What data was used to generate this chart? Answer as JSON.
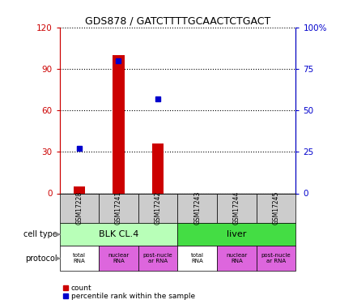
{
  "title": "GDS878 / GATCTTTTGCAACTCTGACT",
  "samples": [
    "GSM17228",
    "GSM17241",
    "GSM17242",
    "GSM17243",
    "GSM17244",
    "GSM17245"
  ],
  "bar_values": [
    5,
    100,
    36,
    0,
    0,
    0
  ],
  "scatter_values": [
    27,
    80,
    57,
    null,
    null,
    null
  ],
  "left_ylim": [
    0,
    120
  ],
  "right_ylim": [
    0,
    100
  ],
  "left_yticks": [
    0,
    30,
    60,
    90,
    120
  ],
  "right_yticks": [
    0,
    25,
    50,
    75,
    100
  ],
  "left_yticklabels": [
    "0",
    "30",
    "60",
    "90",
    "120"
  ],
  "right_yticklabels": [
    "0",
    "25",
    "50",
    "75",
    "100%"
  ],
  "bar_color": "#cc0000",
  "scatter_color": "#0000cc",
  "left_axis_color": "#cc0000",
  "right_axis_color": "#0000cc",
  "cell_groups": [
    {
      "label": "BLK CL.4",
      "start": 0,
      "end": 3,
      "color": "#b8ffb8"
    },
    {
      "label": "liver",
      "start": 3,
      "end": 6,
      "color": "#44dd44"
    }
  ],
  "protocol_groups": [
    {
      "label": "total\nRNA",
      "color": "#ffffff",
      "col": 0
    },
    {
      "label": "nuclear\nRNA",
      "color": "#dd66dd",
      "col": 1
    },
    {
      "label": "post-nucle\nar RNA",
      "color": "#dd66dd",
      "col": 2
    },
    {
      "label": "total\nRNA",
      "color": "#ffffff",
      "col": 3
    },
    {
      "label": "nuclear\nRNA",
      "color": "#dd66dd",
      "col": 4
    },
    {
      "label": "post-nucle\nar RNA",
      "color": "#dd66dd",
      "col": 5
    }
  ],
  "legend_count_color": "#cc0000",
  "legend_scatter_color": "#0000cc",
  "legend_count_label": "count",
  "legend_scatter_label": "percentile rank within the sample",
  "bg_color": "#ffffff",
  "sample_bg_color": "#cccccc",
  "cell_type_label": "cell type",
  "protocol_label": "protocol"
}
